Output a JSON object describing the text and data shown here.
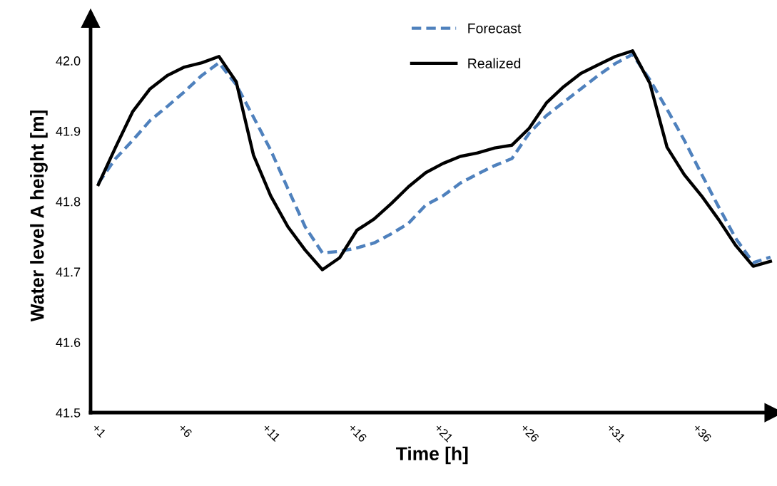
{
  "chart_data": {
    "type": "line",
    "xlabel": "Time [h]",
    "ylabel": "Water level A height [m]",
    "categories": [
      "+1",
      null,
      null,
      null,
      null,
      "+6",
      null,
      null,
      null,
      null,
      "+11",
      null,
      null,
      null,
      null,
      "+16",
      null,
      null,
      null,
      null,
      "+21",
      null,
      null,
      null,
      null,
      "+26",
      null,
      null,
      null,
      null,
      "+31",
      null,
      null,
      null,
      null,
      "+36",
      null,
      null,
      null,
      null
    ],
    "series": [
      {
        "name": "Forecast",
        "color": "#4f81bd",
        "line_style": "dashed",
        "values": [
          41.826,
          41.861,
          41.887,
          41.915,
          41.935,
          41.956,
          41.979,
          41.997,
          41.966,
          41.92,
          41.873,
          41.818,
          41.764,
          41.727,
          41.729,
          41.734,
          41.741,
          41.754,
          41.769,
          41.795,
          41.808,
          41.826,
          41.839,
          41.851,
          41.861,
          41.897,
          41.922,
          41.941,
          41.96,
          41.979,
          41.996,
          42.009,
          41.973,
          41.931,
          41.887,
          41.839,
          41.792,
          41.747,
          41.713,
          41.721
        ]
      },
      {
        "name": "Realized",
        "color": "#000000",
        "line_style": "solid",
        "values": [
          41.824,
          41.877,
          41.928,
          41.96,
          41.979,
          41.991,
          41.997,
          42.006,
          41.97,
          41.866,
          41.808,
          41.764,
          41.731,
          41.703,
          41.72,
          41.759,
          41.775,
          41.797,
          41.821,
          41.841,
          41.854,
          41.864,
          41.869,
          41.876,
          41.88,
          41.904,
          41.94,
          41.963,
          41.982,
          41.994,
          42.006,
          42.014,
          41.968,
          41.877,
          41.838,
          41.808,
          41.774,
          41.737,
          41.708,
          41.715
        ]
      }
    ],
    "ylim": [
      41.5,
      42.06
    ],
    "yticks": [
      41.5,
      41.6,
      41.7,
      41.8,
      41.9,
      {
        "value": 42.0,
        "label": "42.0"
      }
    ],
    "grid": false,
    "legend": "top",
    "marker": "none"
  }
}
